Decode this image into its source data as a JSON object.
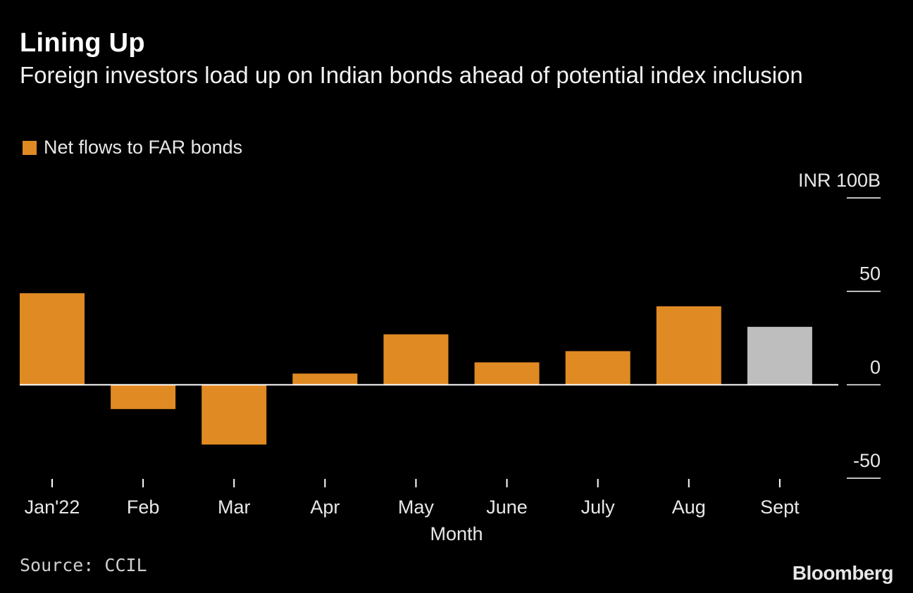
{
  "chart_data": {
    "type": "bar",
    "title": "Lining Up",
    "subtitle": "Foreign investors load up on Indian bonds ahead of potential index inclusion",
    "legend": [
      "Net flows to FAR bonds"
    ],
    "categories": [
      "Jan'22",
      "Feb",
      "Mar",
      "Apr",
      "May",
      "June",
      "July",
      "Aug",
      "Sept"
    ],
    "series": [
      {
        "name": "Net flows to FAR bonds",
        "values": [
          49,
          -13,
          -32,
          6,
          27,
          12,
          18,
          42,
          31
        ]
      }
    ],
    "highlight_index": 8,
    "xlabel": "Month",
    "ylabel": "INR 100B",
    "ylim": [
      -50,
      100
    ],
    "yticks": [
      -50,
      0,
      50,
      100
    ],
    "ytick_labels": [
      "-50",
      "0",
      "50",
      "INR 100B"
    ],
    "colors": {
      "bar": "#e08a23",
      "highlight": "#bebebe",
      "background": "#000000",
      "zero_line": "#ffffff"
    }
  },
  "source": "Source: CCIL",
  "brand": "Bloomberg"
}
